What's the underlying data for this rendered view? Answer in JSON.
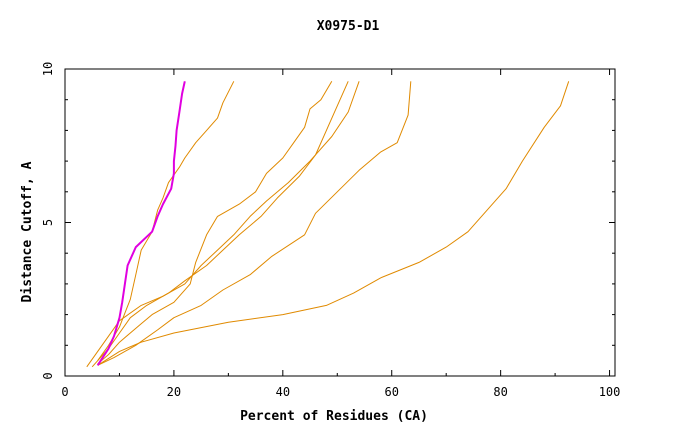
{
  "chart_data": {
    "type": "line",
    "title": "X0975-D1",
    "xlabel": "Percent of Residues (CA)",
    "ylabel": "Distance Cutoff, A",
    "xlim": [
      0,
      101
    ],
    "ylim": [
      0,
      10
    ],
    "xticks": [
      0,
      20,
      40,
      60,
      80,
      100
    ],
    "yticks": [
      0,
      5,
      10
    ],
    "grid": false,
    "legend": "none",
    "colors": {
      "background": "#ffffff",
      "axis": "#000000",
      "series": "#e08a00",
      "highlight": "#e000e0"
    },
    "series": [
      {
        "color": "#e08a00",
        "points": [
          [
            6,
            0.35
          ],
          [
            10,
            0.8
          ],
          [
            14,
            1.1
          ],
          [
            20,
            1.4
          ],
          [
            30,
            1.75
          ],
          [
            40,
            2.0
          ],
          [
            48,
            2.3
          ],
          [
            53,
            2.7
          ],
          [
            58,
            3.2
          ],
          [
            65,
            3.7
          ],
          [
            70,
            4.2
          ],
          [
            74,
            4.7
          ],
          [
            78,
            5.5
          ],
          [
            81,
            6.1
          ],
          [
            84,
            7.0
          ],
          [
            88,
            8.1
          ],
          [
            91,
            8.8
          ],
          [
            92.5,
            9.6
          ]
        ]
      },
      {
        "color": "#e08a00",
        "points": [
          [
            6,
            0.35
          ],
          [
            9,
            0.6
          ],
          [
            13,
            1.0
          ],
          [
            17,
            1.5
          ],
          [
            20,
            1.9
          ],
          [
            25,
            2.3
          ],
          [
            29,
            2.8
          ],
          [
            34,
            3.3
          ],
          [
            38,
            3.9
          ],
          [
            44,
            4.6
          ],
          [
            46,
            5.3
          ],
          [
            50,
            6.0
          ],
          [
            54,
            6.7
          ],
          [
            58,
            7.3
          ],
          [
            61,
            7.6
          ],
          [
            63,
            8.5
          ],
          [
            63.5,
            9.6
          ]
        ]
      },
      {
        "color": "#e08a00",
        "points": [
          [
            4,
            0.3
          ],
          [
            6,
            0.8
          ],
          [
            8,
            1.3
          ],
          [
            10,
            1.8
          ],
          [
            14,
            2.3
          ],
          [
            18,
            2.6
          ],
          [
            22,
            3.0
          ],
          [
            25,
            3.6
          ],
          [
            28,
            4.1
          ],
          [
            31,
            4.6
          ],
          [
            34,
            5.2
          ],
          [
            37,
            5.7
          ],
          [
            41,
            6.3
          ],
          [
            45,
            7.0
          ],
          [
            49,
            7.8
          ],
          [
            52,
            8.6
          ],
          [
            54,
            9.6
          ]
        ]
      },
      {
        "color": "#e08a00",
        "points": [
          [
            5,
            0.3
          ],
          [
            8,
            0.9
          ],
          [
            10,
            1.4
          ],
          [
            12,
            1.9
          ],
          [
            15,
            2.3
          ],
          [
            19,
            2.7
          ],
          [
            22,
            3.1
          ],
          [
            26,
            3.6
          ],
          [
            29,
            4.1
          ],
          [
            32,
            4.6
          ],
          [
            36,
            5.2
          ],
          [
            39,
            5.8
          ],
          [
            43,
            6.5
          ],
          [
            46,
            7.2
          ],
          [
            48,
            8.0
          ],
          [
            50,
            8.8
          ],
          [
            52,
            9.6
          ]
        ]
      },
      {
        "color": "#e08a00",
        "points": [
          [
            6,
            0.4
          ],
          [
            8,
            0.7
          ],
          [
            10,
            1.1
          ],
          [
            12,
            1.4
          ],
          [
            14,
            1.7
          ],
          [
            16,
            2.0
          ],
          [
            20,
            2.4
          ],
          [
            23,
            3.0
          ],
          [
            24,
            3.7
          ],
          [
            26,
            4.6
          ],
          [
            28,
            5.2
          ],
          [
            32,
            5.6
          ],
          [
            35,
            6.0
          ],
          [
            37,
            6.6
          ],
          [
            40,
            7.1
          ],
          [
            42,
            7.6
          ],
          [
            44,
            8.1
          ],
          [
            45,
            8.7
          ],
          [
            47,
            9.0
          ],
          [
            49,
            9.6
          ]
        ]
      },
      {
        "color": "#e08a00",
        "points": [
          [
            6,
            0.5
          ],
          [
            8,
            1.0
          ],
          [
            10,
            1.6
          ],
          [
            12,
            2.5
          ],
          [
            13,
            3.3
          ],
          [
            14,
            4.1
          ],
          [
            16,
            4.7
          ],
          [
            17,
            5.4
          ],
          [
            18,
            5.8
          ],
          [
            19,
            6.3
          ],
          [
            21,
            6.8
          ],
          [
            22,
            7.1
          ],
          [
            24,
            7.6
          ],
          [
            26,
            8.0
          ],
          [
            28,
            8.4
          ],
          [
            29,
            8.9
          ],
          [
            31,
            9.6
          ]
        ]
      },
      {
        "color": "#e000e0",
        "highlight": true,
        "points": [
          [
            6,
            0.35
          ],
          [
            8,
            0.9
          ],
          [
            9,
            1.3
          ],
          [
            10,
            1.9
          ],
          [
            10.5,
            2.4
          ],
          [
            11,
            3.0
          ],
          [
            11.5,
            3.6
          ],
          [
            13,
            4.2
          ],
          [
            16,
            4.7
          ],
          [
            17,
            5.2
          ],
          [
            18,
            5.6
          ],
          [
            19.5,
            6.1
          ],
          [
            20,
            6.6
          ],
          [
            20,
            7.0
          ],
          [
            20.3,
            7.5
          ],
          [
            20.5,
            8.0
          ],
          [
            21,
            8.6
          ],
          [
            21.5,
            9.2
          ],
          [
            22,
            9.6
          ]
        ]
      }
    ]
  }
}
